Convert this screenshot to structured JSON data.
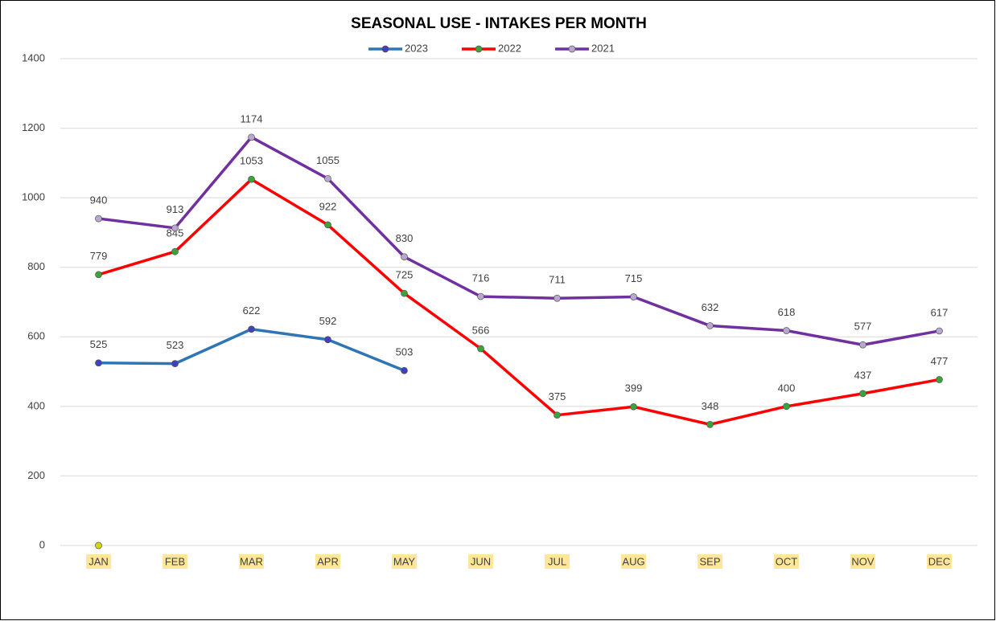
{
  "chart_data": {
    "type": "line",
    "title": "SEASONAL USE - INTAKES PER MONTH",
    "categories": [
      "JAN",
      "FEB",
      "MAR",
      "APR",
      "MAY",
      "JUN",
      "JUL",
      "AUG",
      "SEP",
      "OCT",
      "NOV",
      "DEC"
    ],
    "series": [
      {
        "name": "2023",
        "color": "#2e75b6",
        "marker_color": "#4040c0",
        "values": [
          525,
          523,
          622,
          592,
          503,
          null,
          null,
          null,
          null,
          null,
          null,
          null
        ]
      },
      {
        "name": "2022",
        "color": "#ff0000",
        "marker_color": "#3aa33a",
        "values": [
          779,
          845,
          1053,
          922,
          725,
          566,
          375,
          399,
          348,
          400,
          437,
          477
        ]
      },
      {
        "name": "2021",
        "color": "#7030a0",
        "marker_color": "#b8a8d0",
        "values": [
          940,
          913,
          1174,
          1055,
          830,
          716,
          711,
          715,
          632,
          618,
          577,
          617
        ]
      },
      {
        "color": "#c8d400",
        "marker_color": "#d4d800",
        "values": [
          0,
          null,
          null,
          null,
          null,
          null,
          null,
          null,
          null,
          null,
          null,
          null
        ]
      }
    ],
    "ylim": [
      0,
      1400
    ],
    "yticks": [
      0,
      200,
      400,
      600,
      800,
      1000,
      1200,
      1400
    ],
    "grid": true,
    "legend": "top",
    "category_label_background": "#ffe699"
  }
}
